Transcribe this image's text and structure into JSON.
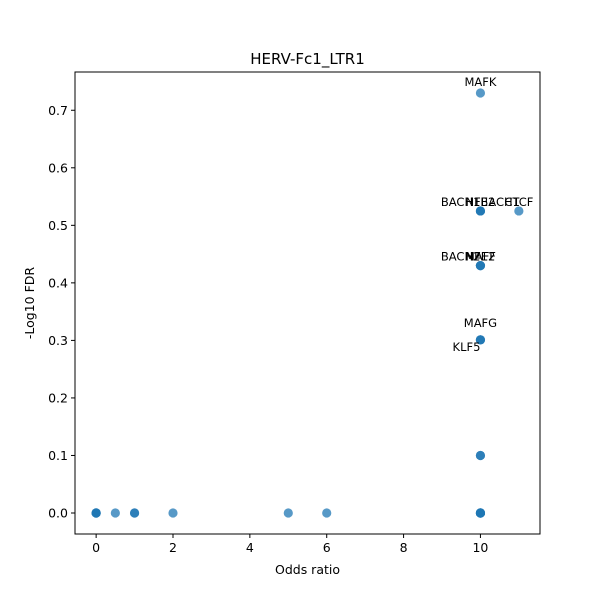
{
  "chart_data": {
    "type": "scatter",
    "title": "HERV-Fc1_LTR1",
    "xlabel": "Odds ratio",
    "ylabel": "-Log10 FDR",
    "xlim": [
      -0.55,
      11.55
    ],
    "ylim": [
      -0.0365,
      0.7665
    ],
    "xticks": [
      0,
      2,
      4,
      6,
      8,
      10
    ],
    "yticks": [
      0.0,
      0.1,
      0.2,
      0.3,
      0.4,
      0.5,
      0.6,
      0.7
    ],
    "xtick_labels": [
      "0",
      "2",
      "4",
      "6",
      "8",
      "10"
    ],
    "ytick_labels": [
      "0.0",
      "0.1",
      "0.2",
      "0.3",
      "0.4",
      "0.5",
      "0.6",
      "0.7"
    ],
    "grid": false,
    "marker_color": "#1f77b4",
    "marker_alpha": 0.75,
    "points": [
      {
        "x": 0,
        "y": 0
      },
      {
        "x": 0,
        "y": 0
      },
      {
        "x": 0,
        "y": 0
      },
      {
        "x": 0,
        "y": 0
      },
      {
        "x": 0.5,
        "y": 0
      },
      {
        "x": 1,
        "y": 0
      },
      {
        "x": 1,
        "y": 0
      },
      {
        "x": 2,
        "y": 0
      },
      {
        "x": 5,
        "y": 0
      },
      {
        "x": 6,
        "y": 0
      },
      {
        "x": 10,
        "y": 0
      },
      {
        "x": 10,
        "y": 0
      },
      {
        "x": 10,
        "y": 0
      },
      {
        "x": 10,
        "y": 0
      },
      {
        "x": 10,
        "y": 0
      },
      {
        "x": 10,
        "y": 0
      },
      {
        "x": 10,
        "y": 0.1
      },
      {
        "x": 10,
        "y": 0.1
      },
      {
        "x": 10,
        "y": 0.301
      },
      {
        "x": 10,
        "y": 0.301
      },
      {
        "x": 10,
        "y": 0.301
      },
      {
        "x": 10,
        "y": 0.43
      },
      {
        "x": 10,
        "y": 0.43
      },
      {
        "x": 10,
        "y": 0.43
      },
      {
        "x": 10,
        "y": 0.525
      },
      {
        "x": 10,
        "y": 0.525
      },
      {
        "x": 10,
        "y": 0.525
      },
      {
        "x": 10,
        "y": 0.73
      },
      {
        "x": 11,
        "y": 0.525
      }
    ],
    "annotations": [
      {
        "text": "MAFK",
        "x": 10,
        "y": 0.73,
        "anchor": "middle",
        "dy": -7
      },
      {
        "text": "BACH1",
        "x": 10,
        "y": 0.525,
        "anchor": "end",
        "dy": -5
      },
      {
        "text": "BACH1",
        "x": 10,
        "y": 0.525,
        "anchor": "start",
        "dy": -5
      },
      {
        "text": "NFE2",
        "x": 10,
        "y": 0.525,
        "anchor": "middle",
        "dy": -5
      },
      {
        "text": "CTCF",
        "x": 11,
        "y": 0.525,
        "anchor": "middle",
        "dy": -5
      },
      {
        "text": "BACH2",
        "x": 10,
        "y": 0.43,
        "anchor": "end",
        "dy": -5
      },
      {
        "text": "MAFF",
        "x": 10,
        "y": 0.43,
        "anchor": "middle",
        "dy": -5
      },
      {
        "text": "NFE2",
        "x": 10,
        "y": 0.43,
        "anchor": "middle",
        "dy": -5
      },
      {
        "text": "MAFG",
        "x": 10,
        "y": 0.301,
        "anchor": "middle",
        "dy": -13
      },
      {
        "text": "KLF5",
        "x": 10,
        "y": 0.301,
        "anchor": "end",
        "dy": 11
      }
    ]
  }
}
